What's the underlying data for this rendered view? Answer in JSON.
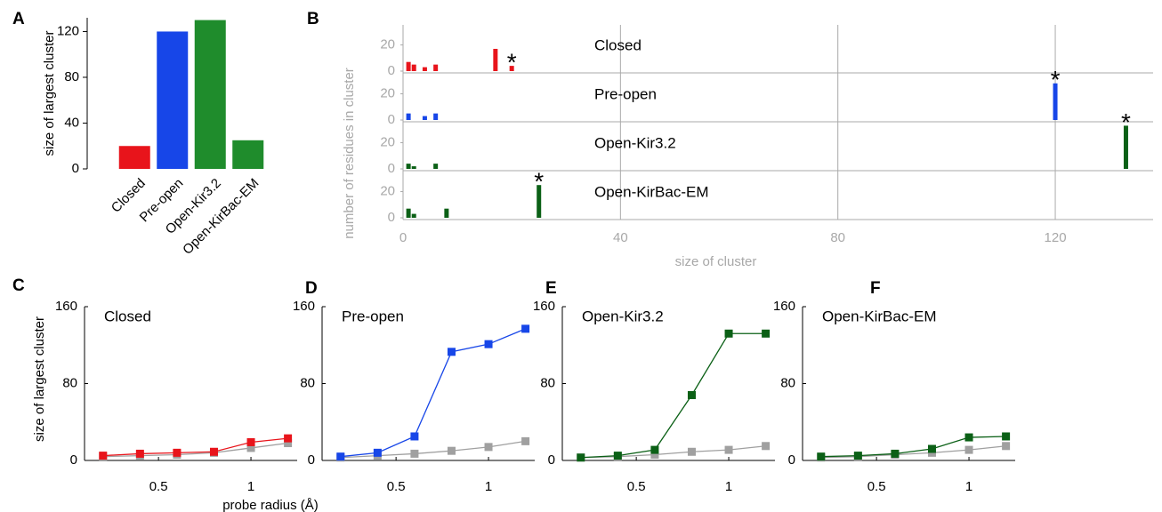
{
  "chart_data": [
    {
      "type": "bar",
      "panel": "A",
      "categories": [
        "Closed",
        "Pre-open",
        "Open-Kir3.2",
        "Open-KirBac-EM"
      ],
      "values": [
        20,
        120,
        130,
        25
      ],
      "colors": [
        "#e8141b",
        "#1746e8",
        "#1f8c2c",
        "#1f8c2c"
      ],
      "label_colors": [
        "#e8141b",
        "#1746e8",
        "#1a9a5c",
        "#1a9a5c"
      ],
      "ylabel": "size of largest cluster",
      "ylim": [
        0,
        132
      ],
      "yticks": [
        0,
        40,
        80,
        120
      ]
    },
    {
      "type": "bar",
      "panel": "B",
      "xlabel": "size of cluster",
      "ylabel": "number of residues in cluster",
      "xlim": [
        0,
        138
      ],
      "xticks": [
        0,
        40,
        80,
        120
      ],
      "ylim": [
        0,
        36
      ],
      "yticks": [
        0,
        20
      ],
      "grid": true,
      "series": [
        {
          "name": "Closed",
          "color": "#e8141b",
          "label_color": "#e8141b",
          "x": [
            1,
            2,
            4,
            6,
            17,
            20
          ],
          "values": [
            7,
            5,
            3,
            5,
            17,
            4
          ],
          "annotation": "*"
        },
        {
          "name": "Pre-open",
          "color": "#1746e8",
          "label_color": "#1746e8",
          "x": [
            1,
            4,
            6,
            120
          ],
          "values": [
            5,
            3,
            5,
            28
          ],
          "annotation": "*"
        },
        {
          "name": "Open-Kir3.2",
          "color": "#0b6016",
          "label_color": "#1a9a5c",
          "x": [
            1,
            2,
            6,
            133
          ],
          "values": [
            4,
            2,
            4,
            33
          ],
          "annotation": "*"
        },
        {
          "name": "Open-KirBac-EM",
          "color": "#0b6016",
          "label_color": "#1a9a5c",
          "x": [
            1,
            2,
            8,
            25
          ],
          "values": [
            7,
            3,
            7,
            25
          ],
          "annotation": "*"
        }
      ]
    },
    {
      "type": "line",
      "panel": "C",
      "xlabel": "probe radius (Å)",
      "ylabel": "size of largest cluster",
      "x": [
        0.2,
        0.4,
        0.6,
        0.8,
        1.0,
        1.2
      ],
      "xlim": [
        0.1,
        1.25
      ],
      "xticks": [
        0.5,
        1
      ],
      "ylim": [
        0,
        160
      ],
      "yticks": [
        0,
        80,
        160
      ],
      "series": [
        {
          "name": "Closed",
          "color": "#e8141b",
          "values": [
            5,
            7,
            8,
            9,
            19,
            23
          ]
        },
        {
          "color": "#a0a0a0",
          "values": [
            4,
            5,
            6,
            8,
            13,
            18
          ]
        }
      ]
    },
    {
      "type": "line",
      "panel": "D",
      "x": [
        0.2,
        0.4,
        0.6,
        0.8,
        1.0,
        1.2
      ],
      "xlim": [
        0.1,
        1.25
      ],
      "xticks": [
        0.5,
        1
      ],
      "ylim": [
        0,
        160
      ],
      "yticks": [
        0,
        80,
        160
      ],
      "series": [
        {
          "name": "Pre-open",
          "color": "#1746e8",
          "values": [
            4,
            8,
            25,
            113,
            121,
            137
          ]
        },
        {
          "color": "#a0a0a0",
          "values": [
            3,
            5,
            7,
            10,
            14,
            20
          ]
        }
      ]
    },
    {
      "type": "line",
      "panel": "E",
      "x": [
        0.2,
        0.4,
        0.6,
        0.8,
        1.0,
        1.2
      ],
      "xlim": [
        0.1,
        1.25
      ],
      "xticks": [
        0.5,
        1
      ],
      "ylim": [
        0,
        160
      ],
      "yticks": [
        0,
        80,
        160
      ],
      "series": [
        {
          "name": "Open-Kir3.2",
          "color": "#0b6016",
          "label_color": "#1a9a5c",
          "values": [
            3,
            5,
            11,
            68,
            132,
            132
          ]
        },
        {
          "color": "#a0a0a0",
          "values": [
            3,
            4,
            6,
            9,
            11,
            15
          ]
        }
      ]
    },
    {
      "type": "line",
      "panel": "F",
      "x": [
        0.2,
        0.4,
        0.6,
        0.8,
        1.0,
        1.2
      ],
      "xlim": [
        0.1,
        1.25
      ],
      "xticks": [
        0.5,
        1
      ],
      "ylim": [
        0,
        160
      ],
      "yticks": [
        0,
        80,
        160
      ],
      "series": [
        {
          "name": "Open-KirBac-EM",
          "color": "#0b6016",
          "label_color": "#1a9a5c",
          "values": [
            4,
            5,
            7,
            12,
            24,
            25
          ]
        },
        {
          "color": "#a0a0a0",
          "values": [
            3,
            4,
            6,
            8,
            11,
            15
          ]
        }
      ]
    }
  ]
}
